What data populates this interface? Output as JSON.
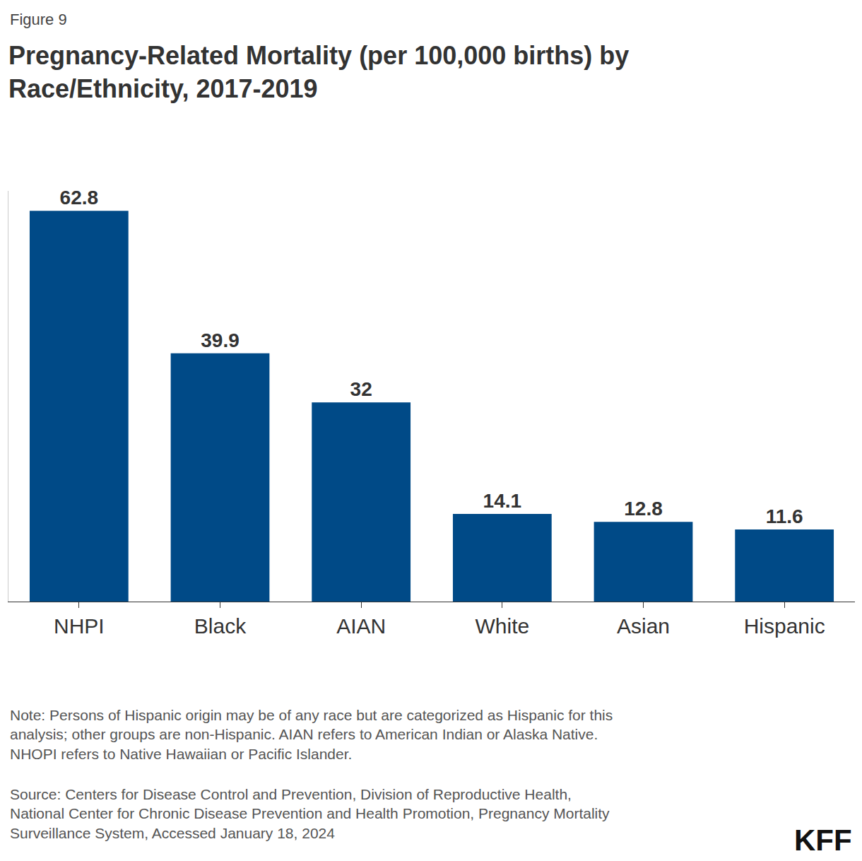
{
  "chart_data": {
    "type": "bar",
    "title": "Pregnancy-Related Mortality (per 100,000 births) by\nRace/Ethnicity, 2017-2019",
    "categories": [
      "NHPI",
      "Black",
      "AIAN",
      "White",
      "Asian",
      "Hispanic"
    ],
    "values": [
      62.8,
      39.9,
      32,
      14.1,
      12.8,
      11.6
    ],
    "color": "#004a87",
    "ylim": [
      0,
      66
    ],
    "grid": false,
    "data_labels": true,
    "tick_labels": "x",
    "annotations": [
      "Figure 9",
      "Note: Persons of Hispanic origin may be of any race but are categorized as Hispanic for this\nanalysis; other groups are non-Hispanic. AIAN refers to American Indian or Alaska Native.\nNHOPI refers to Native Hawaiian or Pacific Islander.",
      "Source: Centers for Disease Control and Prevention, Division of Reproductive Health,\nNational Center for Chronic Disease Prevention and Health Promotion, Pregnancy Mortality\nSurveillance System, Accessed January 18, 2024",
      "KFF"
    ]
  }
}
